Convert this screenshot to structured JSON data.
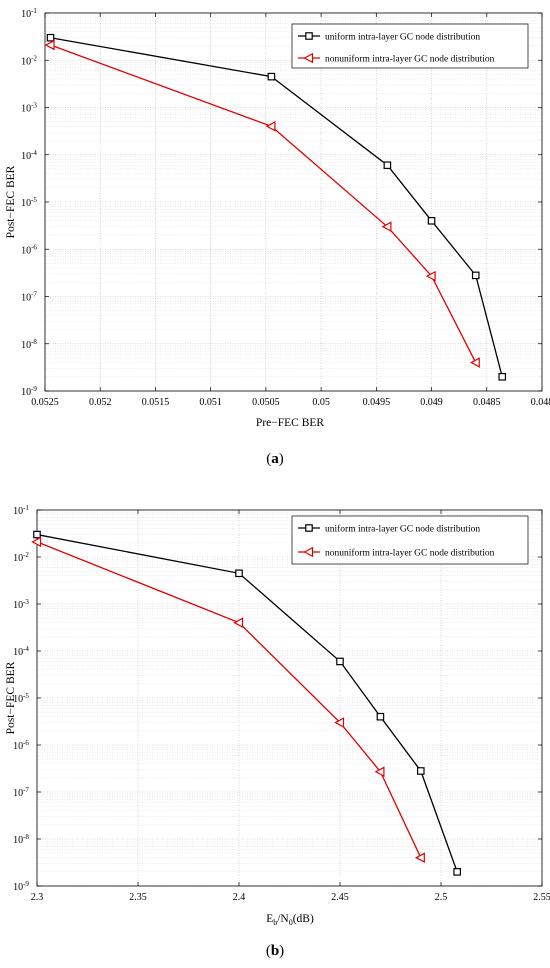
{
  "chart_data": [
    {
      "type": "line",
      "panel_label": "(a)",
      "xlabel": "Pre−FEC BER",
      "ylabel": "Post−FEC BER",
      "x_reversed": true,
      "y_scale": "log",
      "xlim": [
        0.0525,
        0.048
      ],
      "ylim_exp": [
        -9,
        -1
      ],
      "xticks": [
        0.0525,
        0.052,
        0.0515,
        0.051,
        0.0505,
        0.05,
        0.0495,
        0.049,
        0.0485,
        0.048
      ],
      "xtick_labels": [
        "0.0525",
        "0.052",
        "0.0515",
        "0.051",
        "0.0505",
        "0.05",
        "0.0495",
        "0.049",
        "0.0485",
        "0.048"
      ],
      "grid": true,
      "legend_position": "top-right",
      "series": [
        {
          "name": "uniform intra-layer GC node distribution",
          "color": "#000000",
          "marker": "square",
          "x": [
            0.05245,
            0.05045,
            0.0494,
            0.049,
            0.0486,
            0.04836
          ],
          "y": [
            0.03,
            0.0045,
            6e-05,
            4e-06,
            2.8e-07,
            2e-09
          ]
        },
        {
          "name": "nonuniform intra-layer GC node distribution",
          "color": "#e00000",
          "marker": "triangle-left",
          "x": [
            0.05245,
            0.05045,
            0.0494,
            0.049,
            0.0486
          ],
          "y": [
            0.021,
            0.0004,
            3e-06,
            2.7e-07,
            4e-09
          ]
        }
      ]
    },
    {
      "type": "line",
      "panel_label": "(b)",
      "xlabel": "E_b/N_0(dB)",
      "ylabel": "Post−FEC BER",
      "x_reversed": false,
      "y_scale": "log",
      "xlim": [
        2.3,
        2.55
      ],
      "ylim_exp": [
        -9,
        -1
      ],
      "xticks": [
        2.3,
        2.35,
        2.4,
        2.45,
        2.5,
        2.55
      ],
      "xtick_labels": [
        "2.3",
        "2.35",
        "2.4",
        "2.45",
        "2.5",
        "2.55"
      ],
      "grid": true,
      "legend_position": "top-right",
      "series": [
        {
          "name": "uniform intra-layer GC node distribution",
          "color": "#000000",
          "marker": "square",
          "x": [
            2.3,
            2.4,
            2.45,
            2.47,
            2.49,
            2.508
          ],
          "y": [
            0.03,
            0.0045,
            6e-05,
            4e-06,
            2.8e-07,
            2e-09
          ]
        },
        {
          "name": "nonuniform intra-layer GC node distribution",
          "color": "#e00000",
          "marker": "triangle-left",
          "x": [
            2.3,
            2.4,
            2.45,
            2.47,
            2.49
          ],
          "y": [
            0.021,
            0.0004,
            3e-06,
            2.7e-07,
            4e-09
          ]
        }
      ]
    }
  ]
}
